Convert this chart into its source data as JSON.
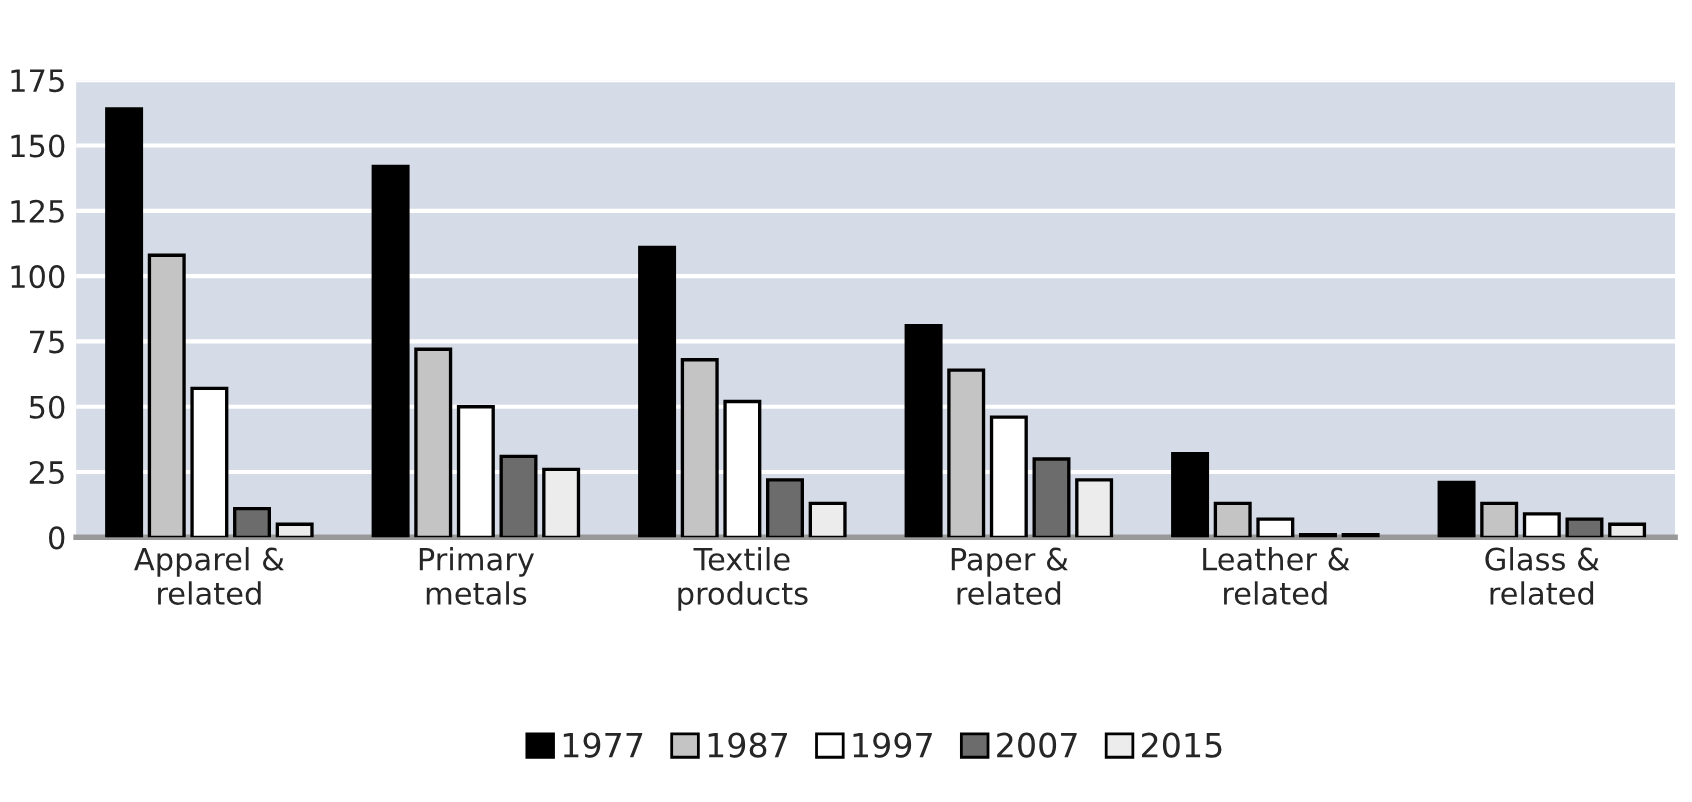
{
  "chart_data": {
    "type": "bar",
    "categories": [
      "Apparel &\nrelated",
      "Primary\nmetals",
      "Textile\nproducts",
      "Paper &\nrelated",
      "Leather &\nrelated",
      "Glass &\nrelated"
    ],
    "series": [
      {
        "name": "1977",
        "color": "#000000",
        "values": [
          164,
          142,
          111,
          81,
          32,
          21
        ]
      },
      {
        "name": "1987",
        "color": "#c4c4c4",
        "values": [
          108,
          72,
          68,
          64,
          13,
          13
        ]
      },
      {
        "name": "1997",
        "color": "#ffffff",
        "values": [
          57,
          50,
          52,
          46,
          7,
          9
        ]
      },
      {
        "name": "2007",
        "color": "#6c6c6c",
        "values": [
          11,
          31,
          22,
          30,
          1,
          7
        ]
      },
      {
        "name": "2015",
        "color": "#ececec",
        "values": [
          5,
          26,
          13,
          22,
          1,
          5
        ]
      }
    ],
    "ylim": [
      0,
      175
    ],
    "yticks": [
      0,
      25,
      50,
      75,
      100,
      125,
      150,
      175
    ],
    "grid": "y",
    "legend": "bottom"
  }
}
